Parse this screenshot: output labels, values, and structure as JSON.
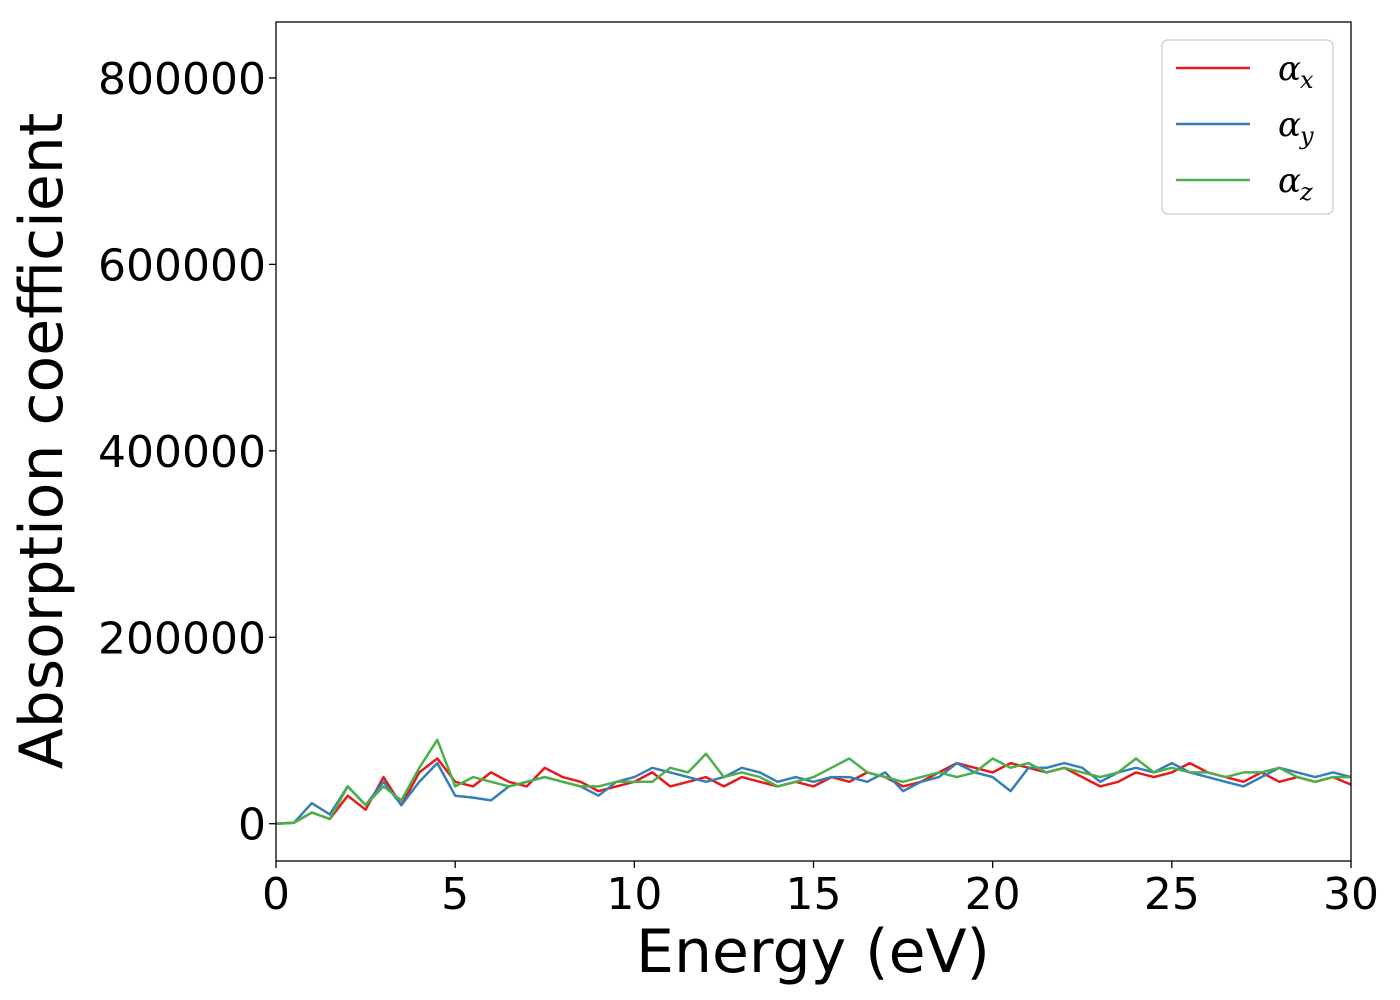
{
  "chart_data": {
    "type": "line",
    "title": "",
    "xlabel": "Energy (eV)",
    "ylabel": "Absorption coefficient",
    "xlim": [
      0,
      30
    ],
    "ylim": [
      -40000,
      860000
    ],
    "xticks": [
      0,
      5,
      10,
      15,
      20,
      25,
      30
    ],
    "xtick_labels": [
      "0",
      "5",
      "10",
      "15",
      "20",
      "25",
      "30"
    ],
    "yticks": [
      0,
      200000,
      400000,
      600000,
      800000
    ],
    "ytick_labels": [
      "0",
      "200000",
      "400000",
      "600000",
      "800000"
    ],
    "grid": false,
    "legend_position": "top-right",
    "x": [
      0,
      0.5,
      1,
      1.5,
      2,
      2.5,
      3,
      3.5,
      4,
      4.5,
      5,
      5.5,
      6,
      6.5,
      7,
      7.5,
      8,
      8.5,
      9,
      9.5,
      10,
      10.5,
      11,
      11.5,
      12,
      12.5,
      13,
      13.5,
      14,
      14.5,
      15,
      15.5,
      16,
      16.5,
      17,
      17.5,
      18,
      18.5,
      19,
      19.5,
      20,
      20.5,
      21,
      21.5,
      22,
      22.5,
      23,
      23.5,
      24,
      24.5,
      25,
      25.5,
      26,
      26.5,
      27,
      27.5,
      28,
      28.5,
      29,
      29.5,
      30
    ],
    "series": [
      {
        "name": "α",
        "subscript": "x",
        "color": "#e41a1c",
        "values": [
          0,
          1000,
          12000,
          5000,
          30000,
          15000,
          50000,
          20000,
          55000,
          70000,
          45000,
          40000,
          55000,
          45000,
          40000,
          60000,
          50000,
          45000,
          35000,
          40000,
          45000,
          55000,
          40000,
          45000,
          50000,
          40000,
          50000,
          45000,
          40000,
          45000,
          40000,
          50000,
          45000,
          55000,
          50000,
          40000,
          45000,
          55000,
          65000,
          60000,
          55000,
          65000,
          60000,
          55000,
          60000,
          50000,
          40000,
          45000,
          55000,
          50000,
          55000,
          65000,
          55000,
          50000,
          45000,
          55000,
          45000,
          50000,
          45000,
          50000,
          42000
        ]
      },
      {
        "name": "α",
        "subscript": "y",
        "color": "#377eb8",
        "values": [
          0,
          1000,
          22000,
          10000,
          40000,
          20000,
          45000,
          20000,
          45000,
          65000,
          30000,
          28000,
          25000,
          40000,
          45000,
          50000,
          45000,
          40000,
          30000,
          45000,
          50000,
          60000,
          55000,
          50000,
          45000,
          50000,
          60000,
          55000,
          45000,
          50000,
          45000,
          50000,
          50000,
          45000,
          55000,
          35000,
          45000,
          50000,
          65000,
          55000,
          50000,
          35000,
          60000,
          60000,
          65000,
          60000,
          45000,
          55000,
          60000,
          55000,
          65000,
          55000,
          50000,
          45000,
          40000,
          50000,
          60000,
          55000,
          50000,
          55000,
          50000
        ]
      },
      {
        "name": "α",
        "subscript": "z",
        "color": "#4daf4a",
        "values": [
          0,
          1000,
          12000,
          5000,
          40000,
          20000,
          40000,
          25000,
          60000,
          90000,
          40000,
          50000,
          45000,
          40000,
          45000,
          50000,
          45000,
          40000,
          40000,
          45000,
          45000,
          45000,
          60000,
          55000,
          75000,
          50000,
          55000,
          50000,
          40000,
          45000,
          50000,
          60000,
          70000,
          55000,
          50000,
          45000,
          50000,
          55000,
          50000,
          55000,
          70000,
          60000,
          65000,
          55000,
          60000,
          55000,
          50000,
          55000,
          70000,
          55000,
          60000,
          55000,
          55000,
          50000,
          55000,
          55000,
          60000,
          50000,
          45000,
          50000,
          50000
        ]
      }
    ]
  }
}
